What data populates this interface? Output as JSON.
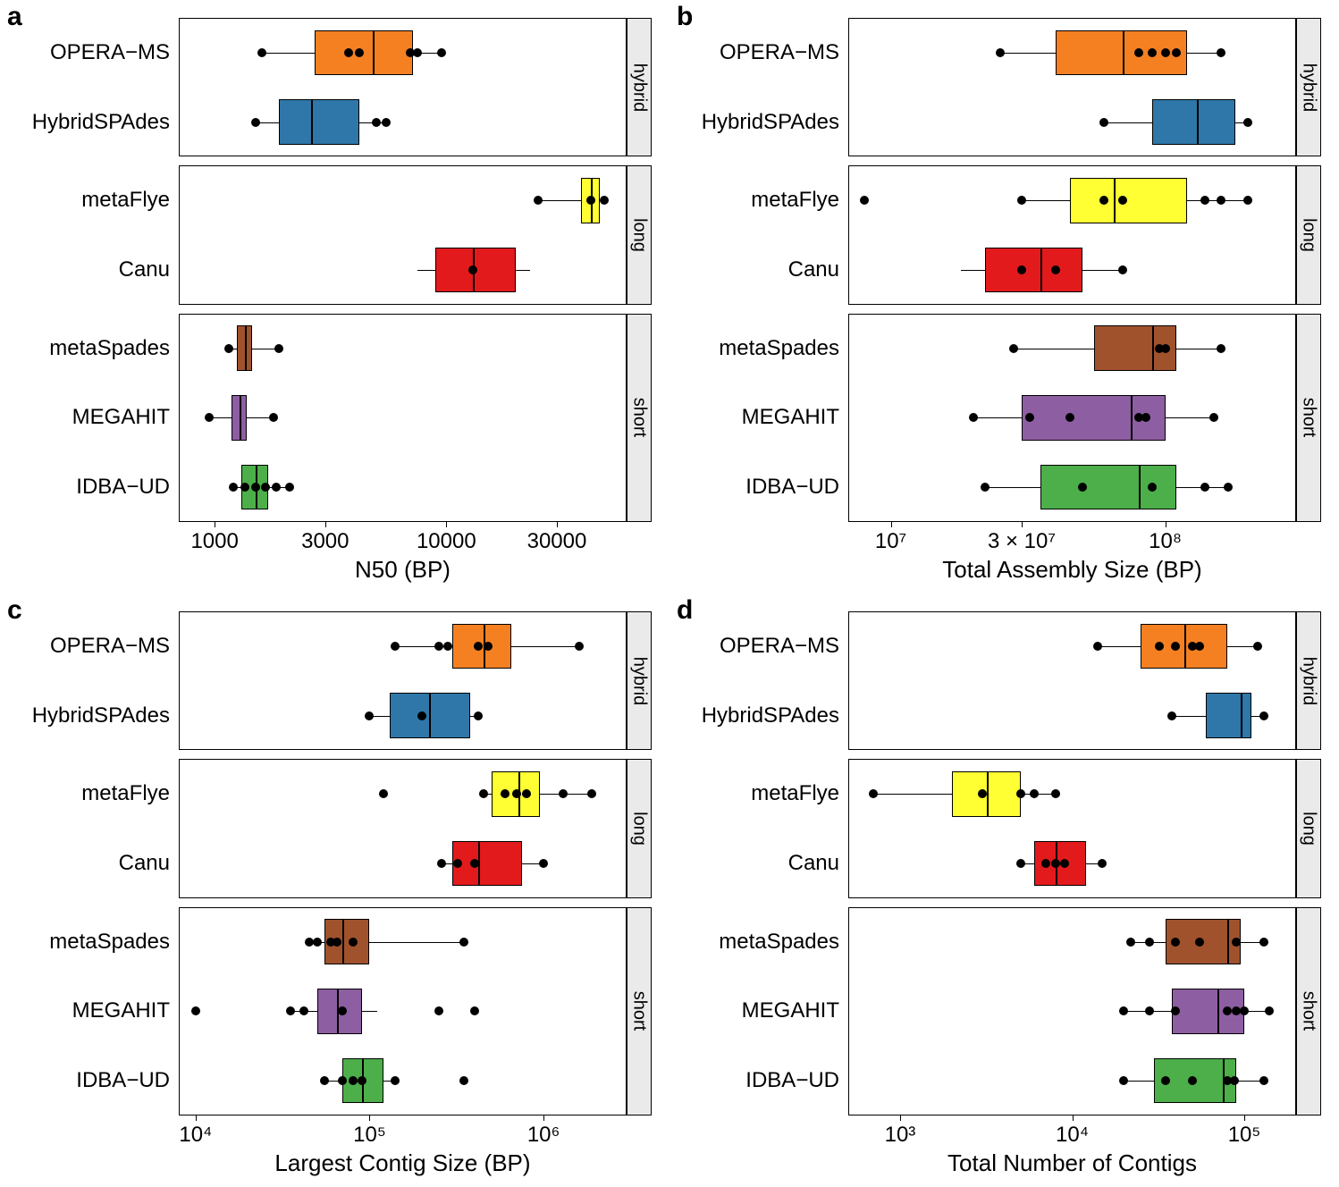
{
  "figure_size": [
    1498,
    1328
  ],
  "label_fontsize": 24,
  "axis_title_fontsize": 26,
  "strip_fontsize": 20,
  "panel_letter_fontsize": 30,
  "point_radius": 5,
  "box_stroke": "#000000",
  "background": "#ffffff",
  "strip_background": "#eaeaea",
  "facet_gap": 10,
  "strip_width": 28,
  "assemblers": {
    "OPERA-MS": {
      "label": "OPERA−MS",
      "color": "#f58022",
      "group": "hybrid"
    },
    "HybridSPAdes": {
      "label": "HybridSPAdes",
      "color": "#2f77a8",
      "group": "hybrid"
    },
    "metaFlye": {
      "label": "metaFlye",
      "color": "#ffff33",
      "group": "long"
    },
    "Canu": {
      "label": "Canu",
      "color": "#e31a1c",
      "group": "long"
    },
    "metaSpades": {
      "label": "metaSpades",
      "color": "#a0522d",
      "group": "short"
    },
    "MEGAHIT": {
      "label": "MEGAHIT",
      "color": "#8e5ea2",
      "group": "short"
    },
    "IDBA-UD": {
      "label": "IDBA−UD",
      "color": "#4daf4a",
      "group": "short"
    }
  },
  "groups": [
    "hybrid",
    "long",
    "short"
  ],
  "order_in_group": {
    "hybrid": [
      "OPERA-MS",
      "HybridSPAdes"
    ],
    "long": [
      "metaFlye",
      "Canu"
    ],
    "short": [
      "metaSpades",
      "MEGAHIT",
      "IDBA-UD"
    ]
  },
  "panels": {
    "a": {
      "letter": "a",
      "type": "boxplot",
      "xlabel": "N50 (BP)",
      "scale": "log",
      "xlim": [
        700,
        60000
      ],
      "xticks": [
        1000,
        3000,
        10000,
        30000
      ],
      "xtick_labels": [
        "1000",
        "3000",
        "10000",
        "30000"
      ],
      "series": {
        "OPERA-MS": {
          "box": [
            2700,
            4800,
            7200
          ],
          "whiskers": [
            1600,
            9500
          ],
          "points": [
            1600,
            3800,
            4200,
            7000,
            7500,
            9500
          ]
        },
        "HybridSPAdes": {
          "box": [
            1900,
            2600,
            4200
          ],
          "whiskers": [
            1500,
            5500
          ],
          "points": [
            1500,
            5000,
            5500
          ]
        },
        "metaFlye": {
          "box": [
            38000,
            42000,
            46000
          ],
          "whiskers": [
            25000,
            48000
          ],
          "points": [
            25000,
            42000,
            48000
          ]
        },
        "Canu": {
          "box": [
            9000,
            13000,
            20000
          ],
          "whiskers": [
            7500,
            23000
          ],
          "points": [
            13000
          ]
        },
        "metaSpades": {
          "box": [
            1250,
            1350,
            1450
          ],
          "whiskers": [
            1150,
            1900
          ],
          "points": [
            1150,
            1900
          ]
        },
        "MEGAHIT": {
          "box": [
            1180,
            1280,
            1380
          ],
          "whiskers": [
            950,
            1800
          ],
          "points": [
            950,
            1800
          ]
        },
        "IDBA-UD": {
          "box": [
            1300,
            1500,
            1700
          ],
          "whiskers": [
            1200,
            2100
          ],
          "points": [
            1200,
            1350,
            1500,
            1650,
            1850,
            2100
          ]
        }
      }
    },
    "b": {
      "letter": "b",
      "type": "boxplot",
      "xlabel": "Total Assembly Size (BP)",
      "scale": "log",
      "xlim": [
        7000000,
        300000000
      ],
      "xticks": [
        10000000.0,
        30000000.0,
        100000000.0
      ],
      "xtick_labels": [
        "10⁷",
        "3 × 10⁷",
        "10⁸"
      ],
      "series": {
        "OPERA-MS": {
          "box": [
            40000000.0,
            70000000.0,
            120000000.0
          ],
          "whiskers": [
            25000000.0,
            160000000.0
          ],
          "points": [
            25000000.0,
            80000000.0,
            90000000.0,
            100000000.0,
            110000000.0,
            160000000.0
          ]
        },
        "HybridSPAdes": {
          "box": [
            90000000.0,
            130000000.0,
            180000000.0
          ],
          "whiskers": [
            60000000.0,
            200000000.0
          ],
          "points": [
            60000000.0,
            200000000.0
          ]
        },
        "metaFlye": {
          "box": [
            45000000.0,
            65000000.0,
            120000000.0
          ],
          "whiskers": [
            30000000.0,
            200000000.0
          ],
          "points": [
            8000000.0,
            30000000.0,
            60000000.0,
            70000000.0,
            140000000.0,
            160000000.0,
            200000000.0
          ]
        },
        "Canu": {
          "box": [
            22000000.0,
            35000000.0,
            50000000.0
          ],
          "whiskers": [
            18000000.0,
            70000000.0
          ],
          "points": [
            30000000.0,
            40000000.0,
            70000000.0
          ]
        },
        "metaSpades": {
          "box": [
            55000000.0,
            90000000.0,
            110000000.0
          ],
          "whiskers": [
            28000000.0,
            160000000.0
          ],
          "points": [
            28000000.0,
            95000000.0,
            100000000.0,
            160000000.0
          ]
        },
        "MEGAHIT": {
          "box": [
            30000000.0,
            75000000.0,
            100000000.0
          ],
          "whiskers": [
            20000000.0,
            150000000.0
          ],
          "points": [
            20000000.0,
            32000000.0,
            45000000.0,
            80000000.0,
            85000000.0,
            150000000.0
          ]
        },
        "IDBA-UD": {
          "box": [
            35000000.0,
            80000000.0,
            110000000.0
          ],
          "whiskers": [
            22000000.0,
            170000000.0
          ],
          "points": [
            22000000.0,
            50000000.0,
            90000000.0,
            140000000.0,
            170000000.0
          ]
        }
      }
    },
    "c": {
      "letter": "c",
      "type": "boxplot",
      "xlabel": "Largest Contig Size (BP)",
      "scale": "log",
      "xlim": [
        8000,
        3000000
      ],
      "xticks": [
        10000.0,
        100000.0,
        1000000.0
      ],
      "xtick_labels": [
        "10⁴",
        "10⁵",
        "10⁶"
      ],
      "series": {
        "OPERA-MS": {
          "box": [
            300000.0,
            450000.0,
            650000.0
          ],
          "whiskers": [
            140000.0,
            1600000.0
          ],
          "points": [
            140000.0,
            250000.0,
            280000.0,
            420000.0,
            480000.0,
            1600000.0
          ]
        },
        "HybridSPAdes": {
          "box": [
            130000.0,
            220000.0,
            380000.0
          ],
          "whiskers": [
            100000.0,
            420000.0
          ],
          "points": [
            100000.0,
            200000.0,
            420000.0
          ]
        },
        "metaFlye": {
          "box": [
            500000.0,
            720000.0,
            950000.0
          ],
          "whiskers": [
            450000.0,
            1900000.0
          ],
          "points": [
            120000.0,
            450000.0,
            600000.0,
            700000.0,
            800000.0,
            1300000.0,
            1900000.0
          ]
        },
        "Canu": {
          "box": [
            300000.0,
            420000.0,
            750000.0
          ],
          "whiskers": [
            260000.0,
            1000000.0
          ],
          "points": [
            260000.0,
            320000.0,
            400000.0,
            1000000.0
          ]
        },
        "metaSpades": {
          "box": [
            55000.0,
            70000.0,
            100000.0
          ],
          "whiskers": [
            45000.0,
            350000.0
          ],
          "points": [
            45000.0,
            50000.0,
            60000.0,
            65000.0,
            80000.0,
            350000.0
          ]
        },
        "MEGAHIT": {
          "box": [
            50000.0,
            65000.0,
            90000.0
          ],
          "whiskers": [
            35000.0,
            110000.0
          ],
          "points": [
            10000.0,
            35000.0,
            42000.0,
            70000.0,
            250000.0,
            400000.0
          ]
        },
        "IDBA-UD": {
          "box": [
            70000.0,
            90000.0,
            120000.0
          ],
          "whiskers": [
            55000.0,
            140000.0
          ],
          "points": [
            55000.0,
            70000.0,
            80000.0,
            90000.0,
            140000.0,
            350000.0
          ]
        }
      }
    },
    "d": {
      "letter": "d",
      "type": "boxplot",
      "xlabel": "Total Number of Contigs",
      "scale": "log",
      "xlim": [
        500,
        200000
      ],
      "xticks": [
        1000.0,
        10000.0,
        100000.0
      ],
      "xtick_labels": [
        "10³",
        "10⁴",
        "10⁵"
      ],
      "series": {
        "OPERA-MS": {
          "box": [
            25000.0,
            45000.0,
            80000.0
          ],
          "whiskers": [
            14000.0,
            120000.0
          ],
          "points": [
            14000.0,
            32000.0,
            40000.0,
            50000.0,
            55000.0,
            120000.0
          ]
        },
        "HybridSPAdes": {
          "box": [
            60000.0,
            95000.0,
            110000.0
          ],
          "whiskers": [
            38000.0,
            130000.0
          ],
          "points": [
            38000.0,
            130000.0
          ]
        },
        "metaFlye": {
          "box": [
            2000.0,
            3200.0,
            5000.0
          ],
          "whiskers": [
            700.0,
            8000.0
          ],
          "points": [
            700.0,
            3000.0,
            5000.0,
            6000.0,
            8000.0
          ]
        },
        "Canu": {
          "box": [
            6000.0,
            8000.0,
            12000.0
          ],
          "whiskers": [
            5000.0,
            15000.0
          ],
          "points": [
            5000.0,
            7000.0,
            8000.0,
            9000.0,
            15000.0
          ]
        },
        "metaSpades": {
          "box": [
            35000.0,
            80000.0,
            95000.0
          ],
          "whiskers": [
            22000.0,
            130000.0
          ],
          "points": [
            22000.0,
            28000.0,
            40000.0,
            55000.0,
            90000.0,
            130000.0
          ]
        },
        "MEGAHIT": {
          "box": [
            38000.0,
            70000.0,
            100000.0
          ],
          "whiskers": [
            20000.0,
            140000.0
          ],
          "points": [
            20000.0,
            28000.0,
            40000.0,
            80000.0,
            90000.0,
            100000.0,
            140000.0
          ]
        },
        "IDBA-UD": {
          "box": [
            30000.0,
            75000.0,
            90000.0
          ],
          "whiskers": [
            20000.0,
            130000.0
          ],
          "points": [
            20000.0,
            35000.0,
            50000.0,
            80000.0,
            88000.0,
            130000.0
          ]
        }
      }
    }
  }
}
